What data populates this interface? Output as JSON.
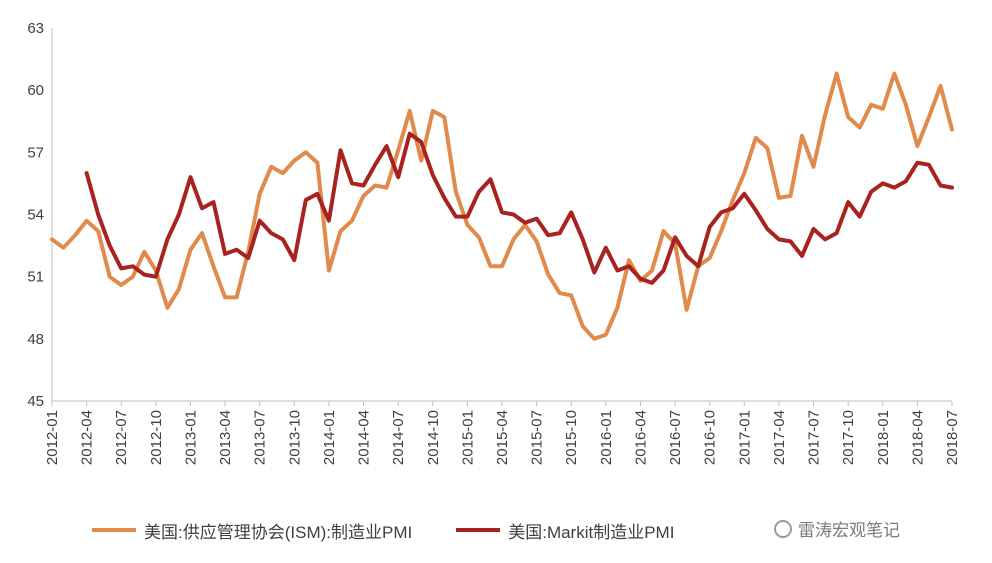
{
  "chart_data": {
    "type": "line",
    "title": "",
    "xlabel": "",
    "ylabel": "",
    "ylim": [
      45,
      63
    ],
    "yticks": [
      "45",
      "48",
      "51",
      "54",
      "57",
      "60",
      "63"
    ],
    "xlim": [
      "2012-01",
      "2018-07"
    ],
    "xtick_labels": [
      "2012-01",
      "2012-04",
      "2012-07",
      "2012-10",
      "2013-01",
      "2013-04",
      "2013-07",
      "2013-10",
      "2014-01",
      "2014-04",
      "2014-07",
      "2014-10",
      "2015-01",
      "2015-04",
      "2015-07",
      "2015-10",
      "2016-01",
      "2016-04",
      "2016-07",
      "2016-10",
      "2017-01",
      "2017-04",
      "2017-07",
      "2017-10",
      "2018-01",
      "2018-04",
      "2018-07"
    ],
    "grid": false,
    "legend_position": "bottom",
    "series": [
      {
        "name": "美国:供应管理协会(ISM):制造业PMI",
        "color": "#E08A4C",
        "start": "2012-01",
        "values": [
          52.8,
          52.4,
          53.0,
          53.7,
          53.2,
          51.0,
          50.6,
          51.0,
          52.2,
          51.3,
          49.5,
          50.4,
          52.3,
          53.1,
          51.5,
          50.0,
          50.0,
          52.2,
          55.0,
          56.3,
          56.0,
          56.6,
          57.0,
          56.5,
          51.3,
          53.2,
          53.7,
          54.9,
          55.4,
          55.3,
          57.1,
          59.0,
          56.6,
          59.0,
          58.7,
          55.1,
          53.5,
          52.9,
          51.5,
          51.5,
          52.8,
          53.5,
          52.7,
          51.1,
          50.2,
          50.1,
          48.6,
          48.0,
          48.2,
          49.5,
          51.8,
          50.8,
          51.3,
          53.2,
          52.6,
          49.4,
          51.5,
          51.9,
          53.2,
          54.7,
          56.0,
          57.7,
          57.2,
          54.8,
          54.9,
          57.8,
          56.3,
          58.8,
          60.8,
          58.7,
          58.2,
          59.3,
          59.1,
          60.8,
          59.3,
          57.3,
          58.7,
          60.2,
          58.1
        ]
      },
      {
        "name": "美国:Markit制造业PMI",
        "color": "#A8231F",
        "start": "2012-04",
        "values": [
          56.0,
          54.0,
          52.5,
          51.4,
          51.5,
          51.1,
          51.0,
          52.8,
          54.0,
          55.8,
          54.3,
          54.6,
          52.1,
          52.3,
          51.9,
          53.7,
          53.1,
          52.8,
          51.8,
          54.7,
          55.0,
          53.7,
          57.1,
          55.5,
          55.4,
          56.4,
          57.3,
          55.8,
          57.9,
          57.5,
          55.9,
          54.8,
          53.9,
          53.9,
          55.1,
          55.7,
          54.1,
          54.0,
          53.6,
          53.8,
          53.0,
          53.1,
          54.1,
          52.8,
          51.2,
          52.4,
          51.3,
          51.5,
          50.9,
          50.7,
          51.3,
          52.9,
          52.0,
          51.5,
          53.4,
          54.1,
          54.3,
          55.0,
          54.2,
          53.3,
          52.8,
          52.7,
          52.0,
          53.3,
          52.8,
          53.1,
          54.6,
          53.9,
          55.1,
          55.5,
          55.3,
          55.6,
          56.5,
          56.4,
          55.4,
          55.3
        ]
      }
    ]
  },
  "watermark": {
    "text": "雷涛宏观笔记",
    "icon": "wechat-icon"
  }
}
